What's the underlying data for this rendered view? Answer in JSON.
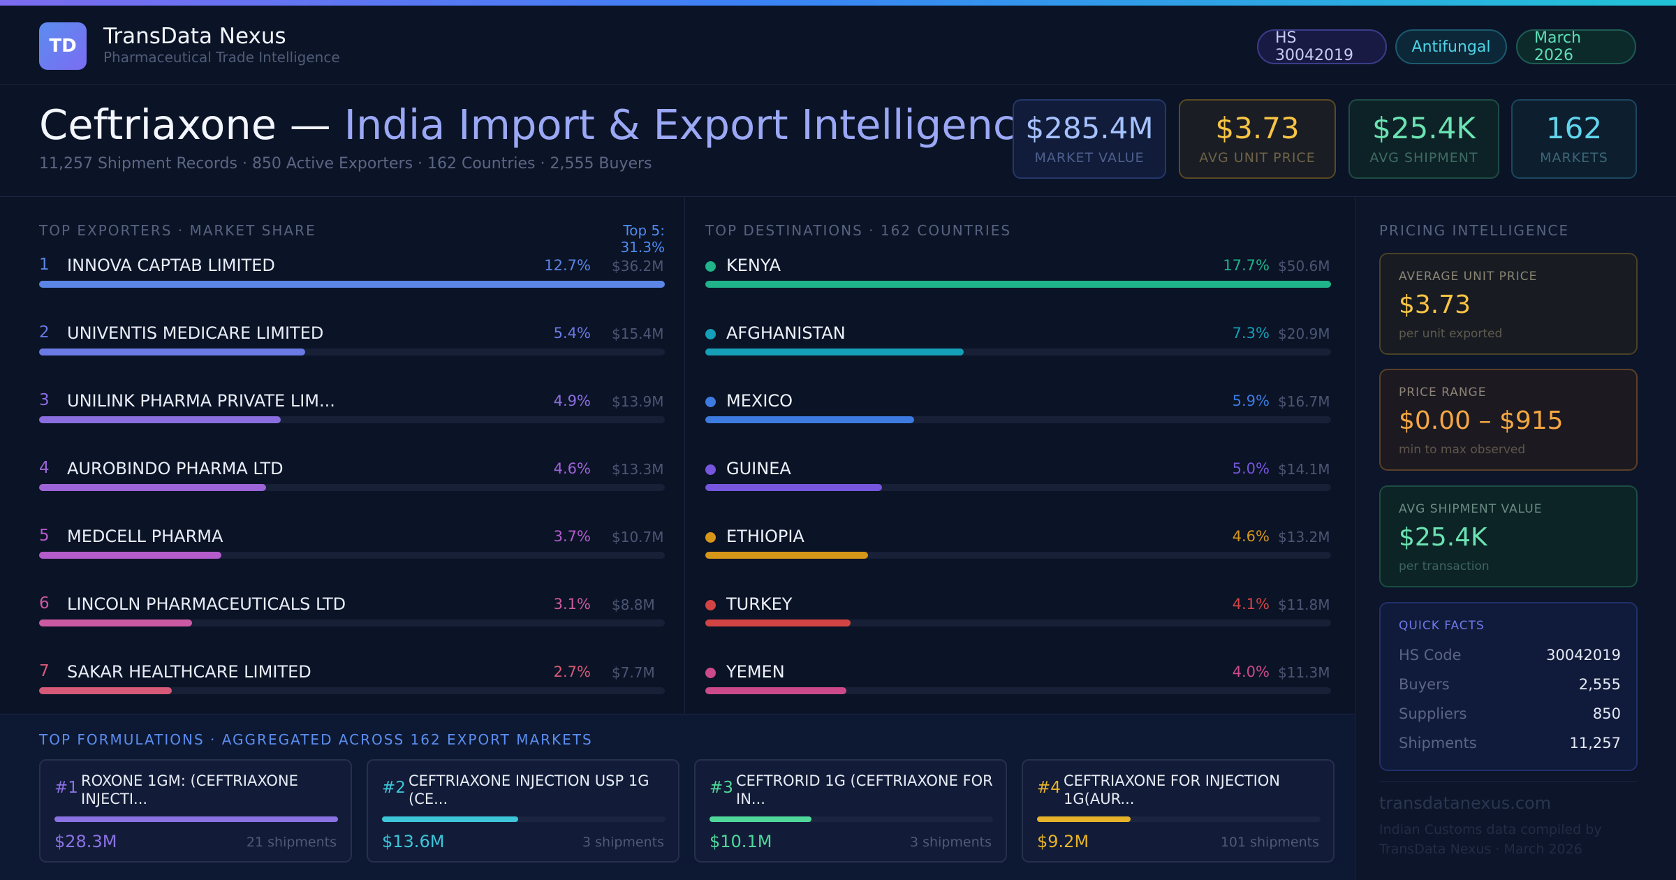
{
  "brand": {
    "logo": "TD",
    "name": "TransData Nexus",
    "tagline": "Pharmaceutical Trade Intelligence"
  },
  "pills": {
    "hs": "HS 30042019",
    "category": "Antifungal",
    "date": "March 2026"
  },
  "title": {
    "drug": "Ceftriaxone —",
    "rest": "India Import & Export Intelligence",
    "subtitle": "11,257 Shipment Records · 850 Active Exporters · 162 Countries · 2,555 Buyers"
  },
  "kpis": [
    {
      "value": "$285.4M",
      "label": "MARKET VALUE"
    },
    {
      "value": "$3.73",
      "label": "AVG UNIT PRICE"
    },
    {
      "value": "$25.4K",
      "label": "AVG SHIPMENT"
    },
    {
      "value": "162",
      "label": "MARKETS"
    }
  ],
  "exporters": {
    "label": "TOP EXPORTERS · MARKET SHARE",
    "top5": "Top 5: 31.3%",
    "items": [
      {
        "rank": "1",
        "name": "INNOVA CAPTAB LIMITED",
        "pct": "12.7%",
        "amt": "$36.2M",
        "share": 12.7,
        "color": "#5b86e5"
      },
      {
        "rank": "2",
        "name": "UNIVENTIS MEDICARE LIMITED",
        "pct": "5.4%",
        "amt": "$15.4M",
        "share": 5.4,
        "color": "#6a7be6"
      },
      {
        "rank": "3",
        "name": "UNILINK PHARMA PRIVATE LIM...",
        "pct": "4.9%",
        "amt": "$13.9M",
        "share": 4.9,
        "color": "#8a6ee0"
      },
      {
        "rank": "4",
        "name": "AUROBINDO PHARMA LTD",
        "pct": "4.6%",
        "amt": "$13.3M",
        "share": 4.6,
        "color": "#9d64d8"
      },
      {
        "rank": "5",
        "name": "MEDCELL PHARMA",
        "pct": "3.7%",
        "amt": "$10.7M",
        "share": 3.7,
        "color": "#b45ccc"
      },
      {
        "rank": "6",
        "name": "LINCOLN PHARMACEUTICALS LTD",
        "pct": "3.1%",
        "amt": "$8.8M",
        "share": 3.1,
        "color": "#cc5aa2"
      },
      {
        "rank": "7",
        "name": "SAKAR HEALTHCARE LIMITED",
        "pct": "2.7%",
        "amt": "$7.7M",
        "share": 2.7,
        "color": "#d65a78"
      }
    ]
  },
  "destinations": {
    "label": "TOP DESTINATIONS · 162 COUNTRIES",
    "items": [
      {
        "name": "KENYA",
        "pct": "17.7%",
        "amt": "$50.6M",
        "share": 17.7,
        "color": "#1fb489"
      },
      {
        "name": "AFGHANISTAN",
        "pct": "7.3%",
        "amt": "$20.9M",
        "share": 7.3,
        "color": "#159fb8"
      },
      {
        "name": "MEXICO",
        "pct": "5.9%",
        "amt": "$16.7M",
        "share": 5.9,
        "color": "#3d7be0"
      },
      {
        "name": "GUINEA",
        "pct": "5.0%",
        "amt": "$14.1M",
        "share": 5.0,
        "color": "#7656dc"
      },
      {
        "name": "ETHIOPIA",
        "pct": "4.6%",
        "amt": "$13.2M",
        "share": 4.6,
        "color": "#d69618"
      },
      {
        "name": "TURKEY",
        "pct": "4.1%",
        "amt": "$11.8M",
        "share": 4.1,
        "color": "#d24444"
      },
      {
        "name": "YEMEN",
        "pct": "4.0%",
        "amt": "$11.3M",
        "share": 4.0,
        "color": "#cc4a8c"
      }
    ]
  },
  "pricing": {
    "label": "PRICING INTELLIGENCE",
    "avg_unit": {
      "label": "AVERAGE UNIT PRICE",
      "value": "$3.73",
      "note": "per unit exported"
    },
    "range": {
      "label": "PRICE RANGE",
      "value": "$0.00 – $915",
      "note": "min to max observed"
    },
    "avg_shipment": {
      "label": "AVG SHIPMENT VALUE",
      "value": "$25.4K",
      "note": "per transaction"
    },
    "quick_facts": {
      "label": "QUICK FACTS",
      "rows": [
        {
          "k": "HS Code",
          "v": "30042019"
        },
        {
          "k": "Buyers",
          "v": "2,555"
        },
        {
          "k": "Suppliers",
          "v": "850"
        },
        {
          "k": "Shipments",
          "v": "11,257"
        }
      ]
    },
    "domain": "transdatanexus.com",
    "footnote": "Indian Customs data compiled by TransData Nexus · March 2026"
  },
  "formulations": {
    "label": "TOP FORMULATIONS · AGGREGATED ACROSS 162 EXPORT MARKETS",
    "items": [
      {
        "rank": "#1",
        "name": "ROXONE 1GM: (CEFTRIAXONE INJECTI...",
        "value": "$28.3M",
        "shipments": "21 shipments",
        "share": 1.0,
        "color": "#8b72e3"
      },
      {
        "rank": "#2",
        "name": "CEFTRIAXONE INJECTION USP 1G (CE...",
        "value": "$13.6M",
        "shipments": "3 shipments",
        "share": 0.48,
        "color": "#3cc6d8"
      },
      {
        "rank": "#3",
        "name": "CEFTRORID 1G (CEFTRIAXONE FOR IN...",
        "value": "$10.1M",
        "shipments": "3 shipments",
        "share": 0.36,
        "color": "#4fd89a"
      },
      {
        "rank": "#4",
        "name": "CEFTRIAXONE FOR INJECTION 1G(AUR...",
        "value": "$9.2M",
        "shipments": "101 shipments",
        "share": 0.33,
        "color": "#e6b22a"
      }
    ]
  }
}
